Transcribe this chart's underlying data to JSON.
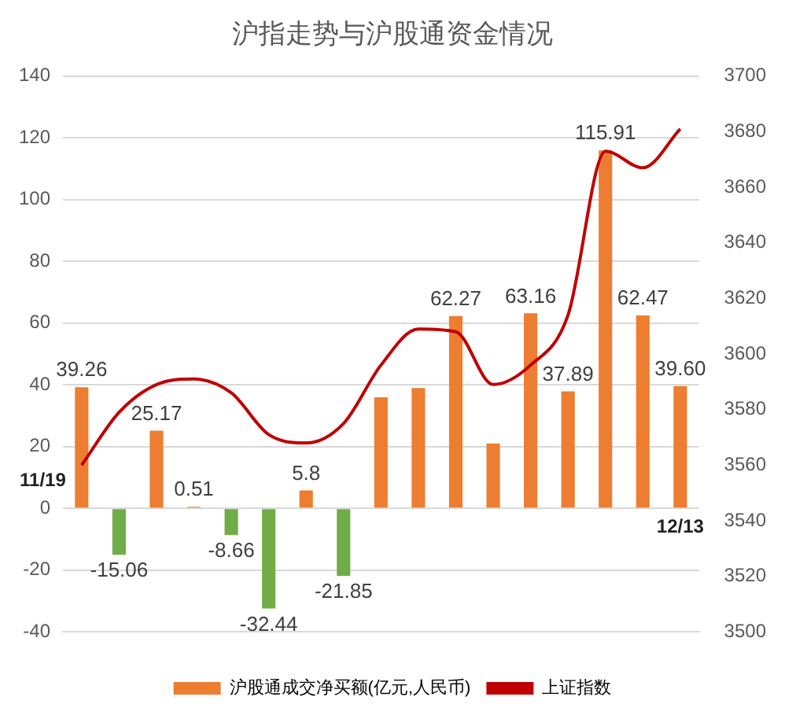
{
  "chart_data": {
    "type": "bar",
    "title": "沪指走势与沪股通资金情况",
    "categories": [
      null,
      null,
      null,
      null,
      null,
      null,
      null,
      null,
      null,
      null,
      null,
      null,
      null,
      null,
      null,
      null,
      null
    ],
    "series": [
      {
        "name": "沪股通成交净买额(亿元,人民币)",
        "color": "#ed7d31",
        "colors": [
          "#ed7d31",
          "#70ad47",
          "#ed7d31",
          "#ed7d31",
          "#70ad47",
          "#70ad47",
          "#ed7d31",
          "#70ad47",
          "#ed7d31",
          "#ed7d31",
          "#ed7d31",
          "#ed7d31",
          "#ed7d31",
          "#ed7d31",
          "#ed7d31",
          "#ed7d31",
          "#ed7d31"
        ],
        "values": [
          39.26,
          -15.06,
          25.17,
          0.51,
          -8.66,
          -32.44,
          5.8,
          -21.85,
          36,
          39,
          62.27,
          21,
          63.16,
          37.89,
          115.91,
          62.47,
          39.6
        ],
        "value_labels": [
          "39.26",
          "-15.06",
          "25.17",
          "0.51",
          "-8.66",
          "-32.44",
          "5.8",
          "-21.85",
          null,
          null,
          "62.27",
          null,
          "63.16",
          "37.89",
          "115.91",
          "62.47",
          "39.60"
        ]
      },
      {
        "type": "line",
        "name": "上证指数",
        "color": "#c00000",
        "axis": "y2",
        "values": [
          3560,
          3579,
          3589,
          3591,
          3586,
          3571,
          3568,
          3575,
          3596,
          3609,
          3608,
          3589,
          3596,
          3614,
          3673,
          3667,
          3681
        ]
      }
    ],
    "annotations": [
      "11/19",
      "12/13"
    ],
    "ylim": [
      -40,
      140
    ],
    "yticks": [
      -40,
      -20,
      0,
      20,
      40,
      60,
      80,
      100,
      120,
      140
    ],
    "y2lim": [
      3500,
      3700
    ],
    "y2ticks": [
      3500,
      3520,
      3540,
      3560,
      3580,
      3600,
      3620,
      3640,
      3660,
      3680,
      3700
    ],
    "grid": "y",
    "legend": "bottom",
    "marker": "none"
  }
}
